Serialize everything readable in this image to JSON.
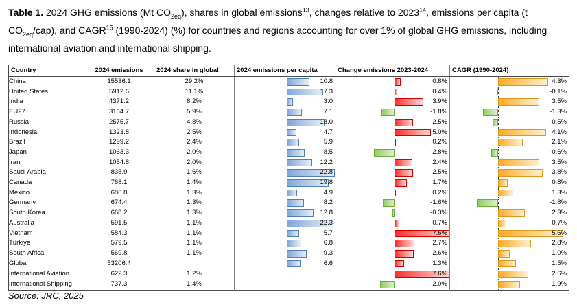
{
  "caption": {
    "segments": [
      {
        "text": "Table 1.",
        "style": "bold"
      },
      {
        "text": " 2024 GHG emissions (Mt CO",
        "style": "normal"
      },
      {
        "text": "2eq",
        "style": "sub"
      },
      {
        "text": "), shares in global emissions",
        "style": "normal"
      },
      {
        "text": "13",
        "style": "sup"
      },
      {
        "text": ", changes relative to 2023",
        "style": "normal"
      },
      {
        "text": "14",
        "style": "sup"
      },
      {
        "text": ", emissions per capita (t CO",
        "style": "normal"
      },
      {
        "text": "2eq",
        "style": "sub"
      },
      {
        "text": "/cap), and CAGR",
        "style": "normal"
      },
      {
        "text": "15",
        "style": "sup"
      },
      {
        "text": " (1990-2024) (%) for countries and regions accounting for over 1% of global GHG emissions, including international aviation and international shipping.",
        "style": "normal"
      }
    ]
  },
  "table": {
    "columns": [
      "Country",
      "2024 emissions",
      "2024 share in global",
      "2024 emissions per capita",
      "Change emissions 2023-2024",
      "CAGR (1990-2024)"
    ],
    "rows": [
      {
        "country": "China",
        "emissions": "15536.1",
        "share": "29.2%",
        "per_capita": "10.8",
        "change": "0.8%",
        "cagr": "4.3%"
      },
      {
        "country": "United States",
        "emissions": "5912.6",
        "share": "11.1%",
        "per_capita": "17.3",
        "change": "0.4%",
        "cagr": "-0.1%"
      },
      {
        "country": "India",
        "emissions": "4371.2",
        "share": "8.2%",
        "per_capita": "3.0",
        "change": "3.9%",
        "cagr": "3.5%"
      },
      {
        "country": "EU27",
        "emissions": "3164.7",
        "share": "5.9%",
        "per_capita": "7.1",
        "change": "-1.8%",
        "cagr": "-1.3%"
      },
      {
        "country": "Russia",
        "emissions": "2575.7",
        "share": "4.8%",
        "per_capita": "18.0",
        "change": "2.5%",
        "cagr": "-0.5%"
      },
      {
        "country": "Indonesia",
        "emissions": "1323.8",
        "share": "2.5%",
        "per_capita": "4.7",
        "change": "5.0%",
        "cagr": "4.1%"
      },
      {
        "country": "Brazil",
        "emissions": "1299.2",
        "share": "2.4%",
        "per_capita": "5.9",
        "change": "0.2%",
        "cagr": "2.1%"
      },
      {
        "country": "Japan",
        "emissions": "1063.3",
        "share": "2.0%",
        "per_capita": "8.5",
        "change": "-2.8%",
        "cagr": "-0.6%"
      },
      {
        "country": "Iran",
        "emissions": "1054.8",
        "share": "2.0%",
        "per_capita": "12.2",
        "change": "2.4%",
        "cagr": "3.5%"
      },
      {
        "country": "Saudi Arabia",
        "emissions": "838.9",
        "share": "1.6%",
        "per_capita": "22.8",
        "change": "2.5%",
        "cagr": "3.8%"
      },
      {
        "country": "Canada",
        "emissions": "768.1",
        "share": "1.4%",
        "per_capita": "19.8",
        "change": "1.7%",
        "cagr": "0.8%"
      },
      {
        "country": "Mexico",
        "emissions": "686.8",
        "share": "1.3%",
        "per_capita": "4.9",
        "change": "0.2%",
        "cagr": "1.3%"
      },
      {
        "country": "Germany",
        "emissions": "674.4",
        "share": "1.3%",
        "per_capita": "8.2",
        "change": "-1.6%",
        "cagr": "-1.8%"
      },
      {
        "country": "South Korea",
        "emissions": "668.2",
        "share": "1.3%",
        "per_capita": "12.8",
        "change": "-0.3%",
        "cagr": "2.3%"
      },
      {
        "country": "Australia",
        "emissions": "591.5",
        "share": "1.1%",
        "per_capita": "22.3",
        "change": "0.7%",
        "cagr": "0.7%"
      },
      {
        "country": "Vietnam",
        "emissions": "584.3",
        "share": "1.1%",
        "per_capita": "5.7",
        "change": "7.6%",
        "cagr": "5.6%"
      },
      {
        "country": "Türkiye",
        "emissions": "579.5",
        "share": "1.1%",
        "per_capita": "6.8",
        "change": "2.7%",
        "cagr": "2.8%"
      },
      {
        "country": "South Africa",
        "emissions": "569.8",
        "share": "1.1%",
        "per_capita": "9.3",
        "change": "2.6%",
        "cagr": "1.0%"
      },
      {
        "country": "Global",
        "emissions": "53206.4",
        "share": "",
        "per_capita": "6.6",
        "change": "1.3%",
        "cagr": "1.5%"
      },
      {
        "country": "International Aviation",
        "emissions": "622.3",
        "share": "1.2%",
        "per_capita": "",
        "change": "7.6%",
        "cagr": "2.6%",
        "separator": true
      },
      {
        "country": "International Shipping",
        "emissions": "737.3",
        "share": "1.4%",
        "per_capita": "",
        "change": "-2.0%",
        "cagr": "1.9%"
      }
    ]
  },
  "source": "Source: JRC, 2025"
}
